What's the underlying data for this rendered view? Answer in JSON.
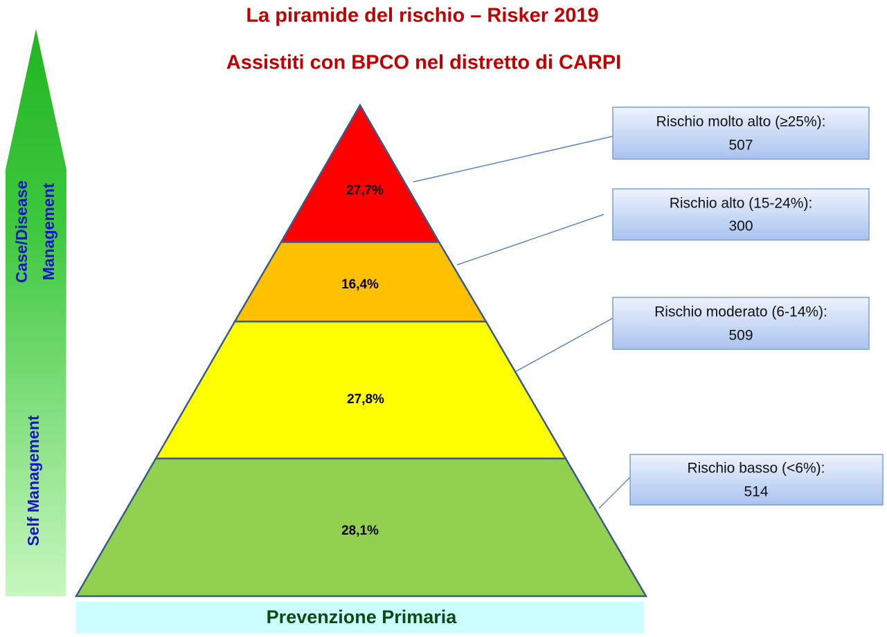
{
  "title": "La piramide del rischio – Risker 2019",
  "subtitle": "Assistiti con BPCO nel distretto di CARPI",
  "levels": [
    {
      "percent": "27,7%",
      "label": "Rischio molto alto (≥25%):",
      "count": 507
    },
    {
      "percent": "16,4%",
      "label": "Rischio alto (15-24%):",
      "count": 300
    },
    {
      "percent": "27,8%",
      "label": "Rischio moderato (6-14%):",
      "count": 509
    },
    {
      "percent": "28,1%",
      "label": "Rischio basso (<6%):",
      "count": 514
    }
  ],
  "arrow": {
    "top_line1": "Case/Disease",
    "top_line2": "Management",
    "bottom": "Self Management"
  },
  "base": "Prevenzione Primaria"
}
